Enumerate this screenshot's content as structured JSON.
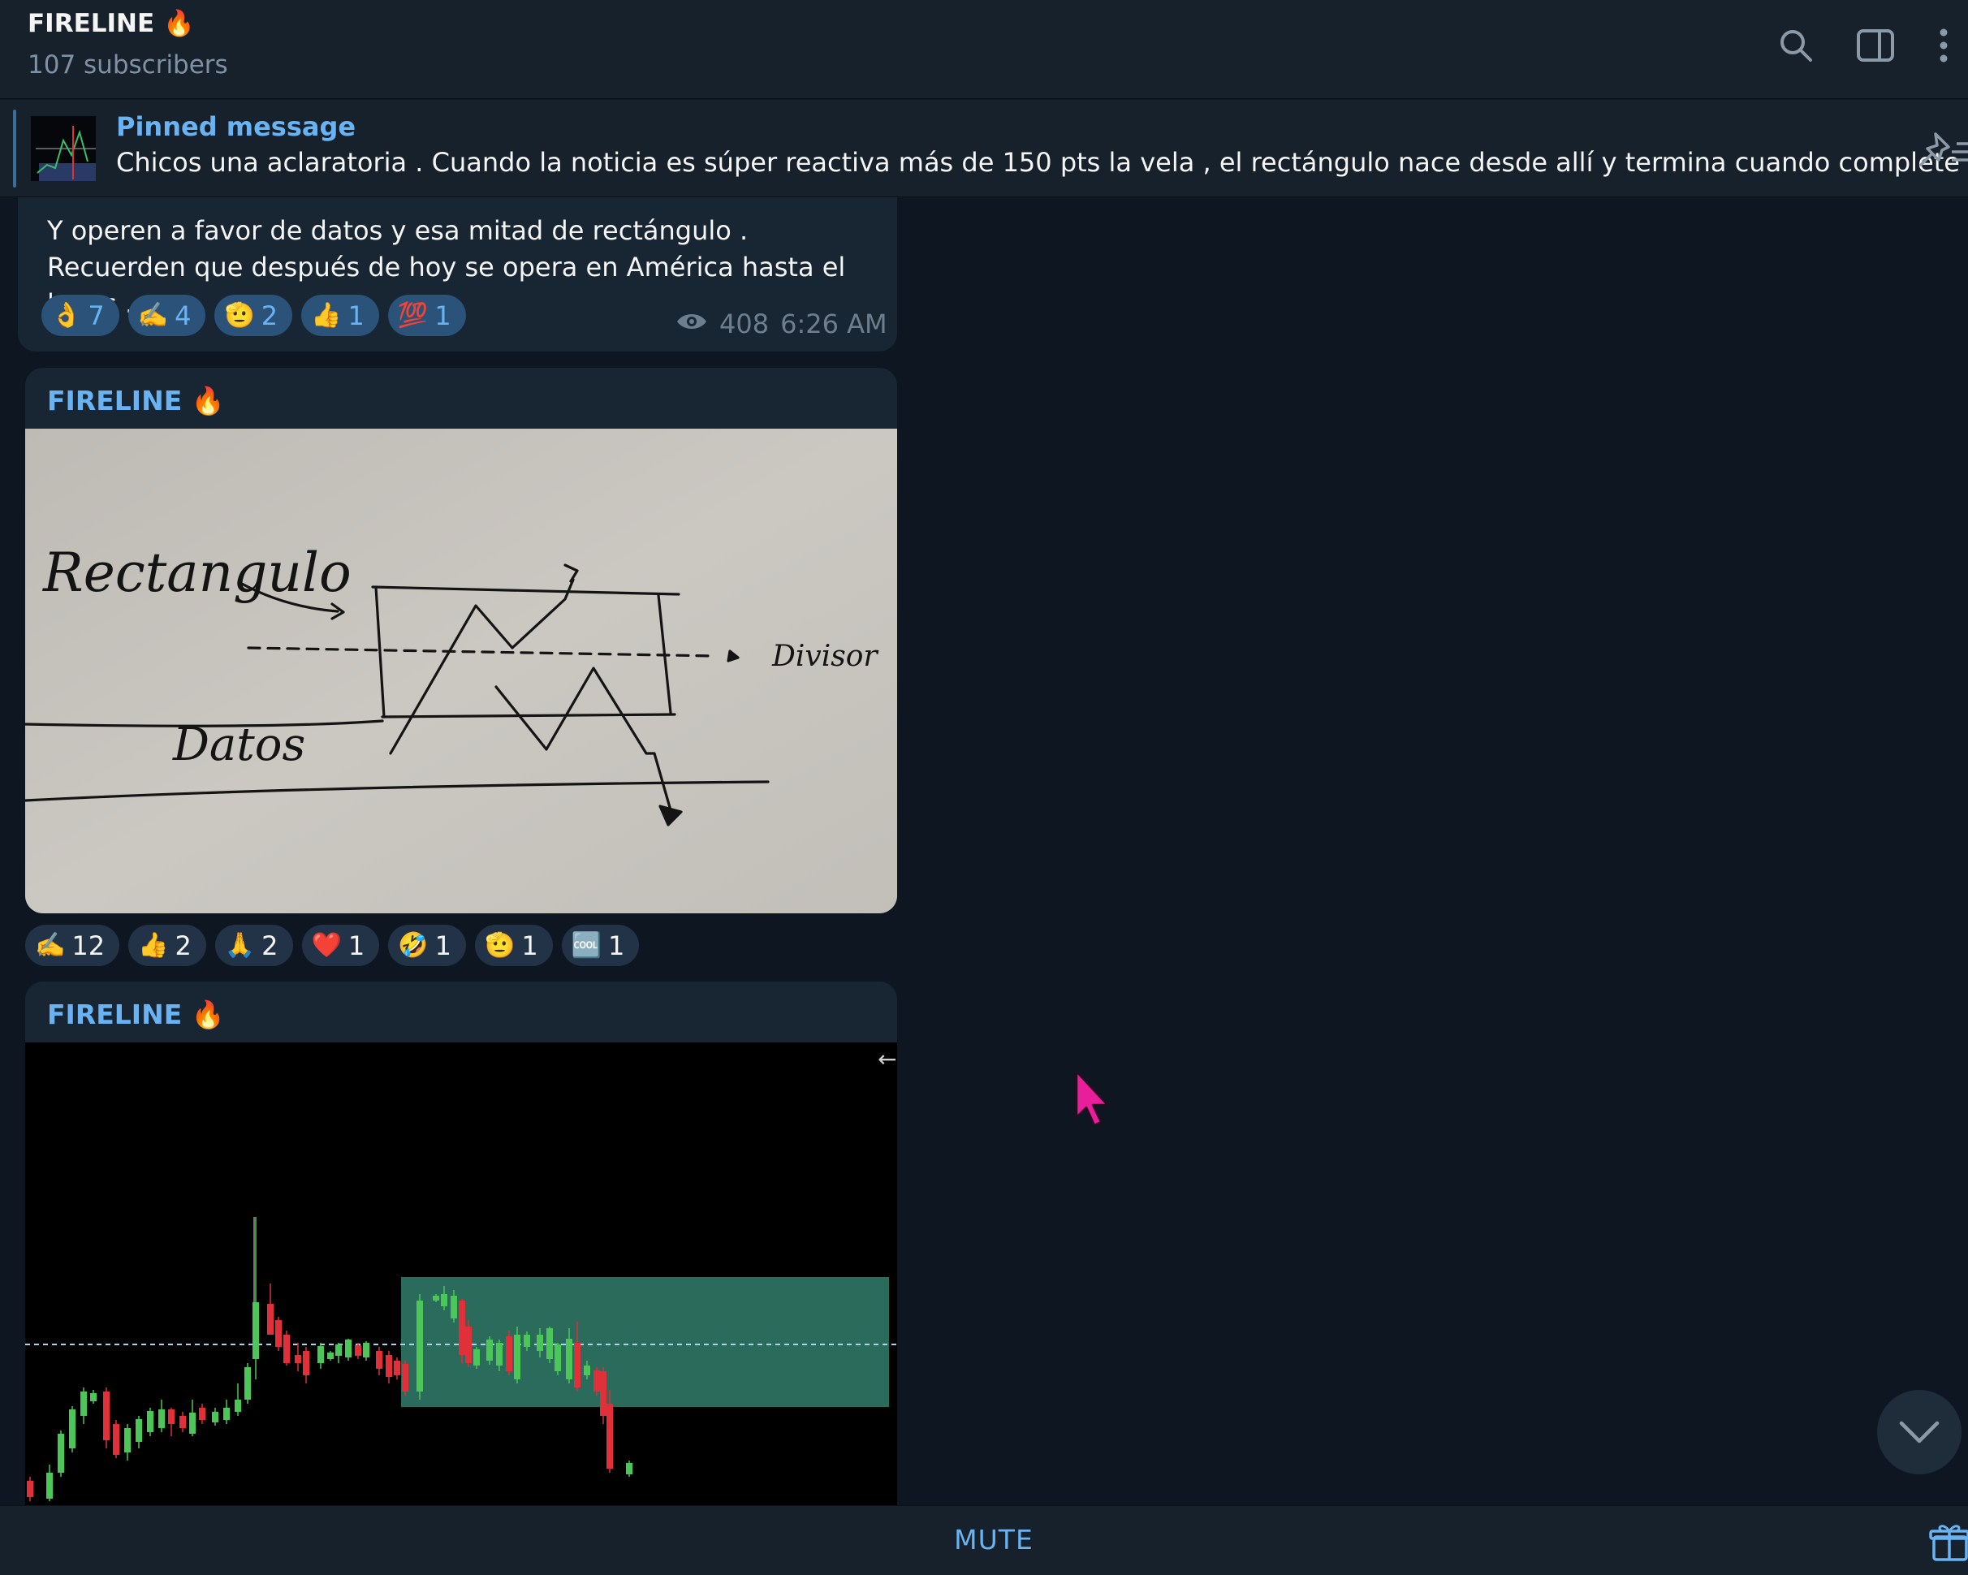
{
  "header": {
    "title": "FIRELINE",
    "title_emoji": "🔥",
    "subtitle": "107 subscribers",
    "icons": [
      "search-icon",
      "sidebar-toggle-icon",
      "more-vertical-icon"
    ]
  },
  "pinned": {
    "title": "Pinned message",
    "text": "Chicos una aclaratoria .  Cuando la noticia es súper reactiva más de 150 pts la vela , el rectángulo nace desde allí y termina cuando complete las..."
  },
  "messages": [
    {
      "text": "Y operen a favor de datos y esa mitad de rectángulo . Recuerden que después de hoy se opera en América hasta el lunes .",
      "reactions": [
        {
          "emoji": "👌",
          "count": "7"
        },
        {
          "emoji": "✍️",
          "count": "4"
        },
        {
          "emoji": "🫡",
          "count": "2"
        },
        {
          "emoji": "👍",
          "count": "1"
        },
        {
          "emoji": "💯",
          "count": "1"
        }
      ],
      "views": "408",
      "time": "6:26 AM"
    },
    {
      "sender": "FIRELINE",
      "sender_emoji": "🔥",
      "photo_labels": {
        "rect": "Rectangulo",
        "divider": "Divisor",
        "data": "Datos"
      },
      "reactions": [
        {
          "emoji": "✍️",
          "count": "12"
        },
        {
          "emoji": "👍",
          "count": "2"
        },
        {
          "emoji": "🙏",
          "count": "2"
        },
        {
          "emoji": "❤️",
          "count": "1"
        },
        {
          "emoji": "🤣",
          "count": "1"
        },
        {
          "emoji": "🫡",
          "count": "1"
        },
        {
          "emoji": "🆒",
          "count": "1"
        }
      ]
    },
    {
      "sender": "FIRELINE",
      "sender_emoji": "🔥",
      "chart_arrow": "←"
    }
  ],
  "bottom": {
    "mute_label": "MUTE"
  },
  "colors": {
    "accent": "#6ab3f3",
    "bg": "#0e1621",
    "panel": "#17212b",
    "bubble": "#182533",
    "bull": "#4cc659",
    "bear": "#e0303a",
    "box": "#2a6b5c"
  }
}
